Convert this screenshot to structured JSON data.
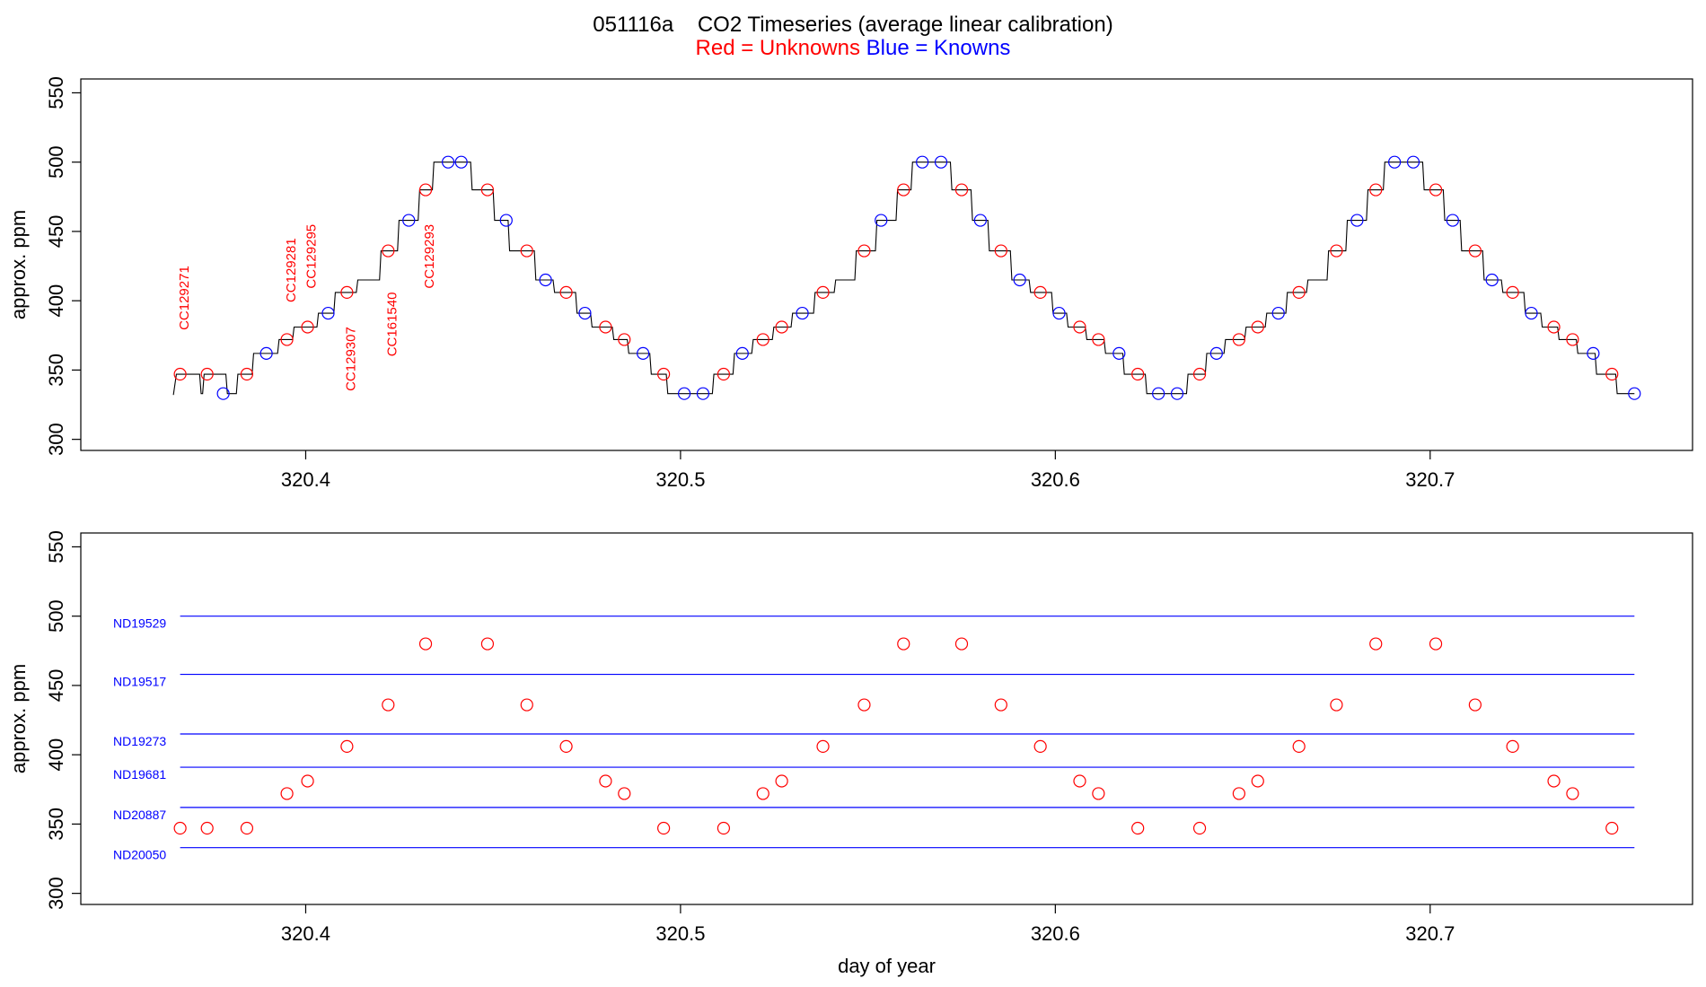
{
  "title": {
    "run_id": "051116a",
    "main": "CO2 Timeseries (average linear calibration)",
    "unknowns_label": "Red = Unknowns",
    "knowns_label": "Blue = Knowns",
    "colors": {
      "unknowns": "#ff0000",
      "knowns": "#0000ff",
      "trace": "#000000"
    }
  },
  "chart_data": [
    {
      "type": "line",
      "panel": "top",
      "ylabel": "approx. ppm",
      "xlabel": "",
      "xlim": [
        320.34,
        320.77
      ],
      "ylim": [
        292,
        560
      ],
      "x_ticks": [
        "320.4",
        "320.5",
        "320.6",
        "320.7"
      ],
      "y_ticks": [
        "300",
        "350",
        "400",
        "450",
        "500",
        "550"
      ],
      "grid": false,
      "trace": {
        "name": "",
        "color": "#000000",
        "points": [
          [
            320.3647,
            332
          ],
          [
            320.3655,
            347
          ],
          [
            320.3717,
            347
          ],
          [
            320.3721,
            333
          ],
          [
            320.3725,
            333
          ],
          [
            320.3729,
            347
          ],
          [
            320.3787,
            347
          ],
          [
            320.3791,
            333
          ],
          [
            320.3815,
            333
          ],
          [
            320.3819,
            347
          ],
          [
            320.3857,
            347
          ],
          [
            320.3861,
            362
          ],
          [
            320.3925,
            362
          ],
          [
            320.3929,
            372
          ],
          [
            320.3965,
            372
          ],
          [
            320.3969,
            381
          ],
          [
            320.403,
            381
          ],
          [
            320.4034,
            391
          ],
          [
            320.4075,
            391
          ],
          [
            320.4079,
            406
          ],
          [
            320.4135,
            406
          ],
          [
            320.4139,
            415
          ],
          [
            320.4197,
            415
          ],
          [
            320.4201,
            436
          ],
          [
            320.4245,
            436
          ],
          [
            320.4249,
            458
          ],
          [
            320.43,
            458
          ],
          [
            320.4304,
            480
          ],
          [
            320.4338,
            480
          ],
          [
            320.4342,
            500
          ],
          [
            320.444,
            500
          ],
          [
            320.4444,
            480
          ],
          [
            320.45,
            480
          ],
          [
            320.4504,
            458
          ],
          [
            320.454,
            458
          ],
          [
            320.4544,
            436
          ],
          [
            320.461,
            436
          ],
          [
            320.4614,
            415
          ],
          [
            320.466,
            415
          ],
          [
            320.4664,
            406
          ],
          [
            320.472,
            406
          ],
          [
            320.4724,
            391
          ],
          [
            320.476,
            391
          ],
          [
            320.4764,
            381
          ],
          [
            320.4818,
            381
          ],
          [
            320.4822,
            372
          ],
          [
            320.4858,
            372
          ],
          [
            320.4862,
            362
          ],
          [
            320.4918,
            362
          ],
          [
            320.4922,
            347
          ],
          [
            320.4962,
            347
          ],
          [
            320.4966,
            333
          ],
          [
            320.5085,
            333
          ],
          [
            320.5089,
            347
          ],
          [
            320.514,
            347
          ],
          [
            320.5144,
            362
          ],
          [
            320.519,
            362
          ],
          [
            320.5194,
            372
          ],
          [
            320.5245,
            372
          ],
          [
            320.5249,
            381
          ],
          [
            320.5295,
            381
          ],
          [
            320.5299,
            391
          ],
          [
            320.5355,
            391
          ],
          [
            320.5359,
            406
          ],
          [
            320.541,
            406
          ],
          [
            320.5414,
            415
          ],
          [
            320.5465,
            415
          ],
          [
            320.5469,
            436
          ],
          [
            320.552,
            436
          ],
          [
            320.5524,
            458
          ],
          [
            320.5575,
            458
          ],
          [
            320.5579,
            480
          ],
          [
            320.5615,
            480
          ],
          [
            320.5619,
            500
          ],
          [
            320.572,
            500
          ],
          [
            320.5724,
            480
          ],
          [
            320.5775,
            480
          ],
          [
            320.5779,
            458
          ],
          [
            320.582,
            458
          ],
          [
            320.5824,
            436
          ],
          [
            320.588,
            436
          ],
          [
            320.5884,
            415
          ],
          [
            320.593,
            415
          ],
          [
            320.5934,
            406
          ],
          [
            320.599,
            406
          ],
          [
            320.5994,
            391
          ],
          [
            320.603,
            391
          ],
          [
            320.6034,
            381
          ],
          [
            320.608,
            381
          ],
          [
            320.6084,
            372
          ],
          [
            320.613,
            372
          ],
          [
            320.6134,
            362
          ],
          [
            320.618,
            362
          ],
          [
            320.6184,
            347
          ],
          [
            320.624,
            347
          ],
          [
            320.6244,
            333
          ],
          [
            320.635,
            333
          ],
          [
            320.6354,
            347
          ],
          [
            320.64,
            347
          ],
          [
            320.6404,
            362
          ],
          [
            320.645,
            362
          ],
          [
            320.6454,
            372
          ],
          [
            320.6505,
            372
          ],
          [
            320.6509,
            381
          ],
          [
            320.656,
            381
          ],
          [
            320.6564,
            391
          ],
          [
            320.6615,
            391
          ],
          [
            320.6619,
            406
          ],
          [
            320.667,
            406
          ],
          [
            320.6674,
            415
          ],
          [
            320.6725,
            415
          ],
          [
            320.6729,
            436
          ],
          [
            320.6775,
            436
          ],
          [
            320.6779,
            458
          ],
          [
            320.683,
            458
          ],
          [
            320.6834,
            480
          ],
          [
            320.6875,
            480
          ],
          [
            320.6879,
            500
          ],
          [
            320.698,
            500
          ],
          [
            320.6984,
            480
          ],
          [
            320.7035,
            480
          ],
          [
            320.7039,
            458
          ],
          [
            320.708,
            458
          ],
          [
            320.7084,
            436
          ],
          [
            320.714,
            436
          ],
          [
            320.7144,
            415
          ],
          [
            320.719,
            415
          ],
          [
            320.7194,
            406
          ],
          [
            320.725,
            406
          ],
          [
            320.7254,
            391
          ],
          [
            320.7295,
            391
          ],
          [
            320.7299,
            381
          ],
          [
            320.734,
            381
          ],
          [
            320.7344,
            372
          ],
          [
            320.739,
            372
          ],
          [
            320.7394,
            362
          ],
          [
            320.744,
            362
          ],
          [
            320.7444,
            347
          ],
          [
            320.7495,
            347
          ],
          [
            320.7499,
            333
          ],
          [
            320.7545,
            333
          ]
        ]
      },
      "series": [
        {
          "name": "Unknowns",
          "color": "#ff0000",
          "x": [
            320.3665,
            320.3737,
            320.3843,
            320.395,
            320.4005,
            320.411,
            320.422,
            320.432,
            320.4485,
            320.459,
            320.4695,
            320.48,
            320.485,
            320.4955,
            320.5115,
            320.522,
            320.527,
            320.538,
            320.549,
            320.5595,
            320.575,
            320.5855,
            320.596,
            320.6065,
            320.6115,
            320.622,
            320.6385,
            320.649,
            320.654,
            320.665,
            320.675,
            320.6855,
            320.7015,
            320.712,
            320.722,
            320.733,
            320.738,
            320.7485
          ],
          "y": [
            347,
            347,
            347,
            372,
            381,
            406,
            436,
            480,
            480,
            436,
            406,
            381,
            372,
            347,
            347,
            372,
            381,
            406,
            436,
            480,
            480,
            436,
            406,
            381,
            372,
            347,
            347,
            372,
            381,
            406,
            436,
            480,
            480,
            436,
            406,
            381,
            372,
            347
          ]
        },
        {
          "name": "Knowns",
          "color": "#0000ff",
          "x": [
            320.378,
            320.3895,
            320.406,
            320.4275,
            320.438,
            320.4415,
            320.4535,
            320.464,
            320.4745,
            320.49,
            320.501,
            320.506,
            320.5165,
            320.5325,
            320.5535,
            320.5645,
            320.5695,
            320.58,
            320.5905,
            320.601,
            320.617,
            320.6275,
            320.6325,
            320.643,
            320.6595,
            320.6805,
            320.6905,
            320.6955,
            320.706,
            320.7165,
            320.727,
            320.7435,
            320.7545
          ],
          "y": [
            333,
            362,
            391,
            458,
            500,
            500,
            458,
            415,
            391,
            362,
            333,
            333,
            362,
            391,
            458,
            500,
            500,
            458,
            415,
            391,
            362,
            333,
            333,
            362,
            391,
            458,
            500,
            500,
            458,
            415,
            391,
            362,
            333
          ]
        }
      ],
      "annotations": [
        {
          "text": "CC129271",
          "x": 320.3675,
          "y": 402,
          "color": "#ff0000"
        },
        {
          "text": "CC129281",
          "x": 320.396,
          "y": 422,
          "color": "#ff0000"
        },
        {
          "text": "CC129295",
          "x": 320.4015,
          "y": 432,
          "color": "#ff0000"
        },
        {
          "text": "CC129307",
          "x": 320.412,
          "y": 358,
          "color": "#ff0000"
        },
        {
          "text": "CC161540",
          "x": 320.423,
          "y": 383,
          "color": "#ff0000"
        },
        {
          "text": "CC129293",
          "x": 320.433,
          "y": 432,
          "color": "#ff0000"
        }
      ]
    },
    {
      "type": "scatter",
      "panel": "bottom",
      "ylabel": "approx. ppm",
      "xlabel": "day of year",
      "xlim": [
        320.34,
        320.77
      ],
      "ylim": [
        292,
        560
      ],
      "x_ticks": [
        "320.4",
        "320.5",
        "320.6",
        "320.7"
      ],
      "y_ticks": [
        "300",
        "350",
        "400",
        "450",
        "500",
        "550"
      ],
      "grid": false,
      "reference_lines": [
        {
          "name": "ND19529",
          "y": 500,
          "color": "#0000ff"
        },
        {
          "name": "ND19517",
          "y": 458,
          "color": "#0000ff"
        },
        {
          "name": "ND19273",
          "y": 415,
          "color": "#0000ff"
        },
        {
          "name": "ND19681",
          "y": 391,
          "color": "#0000ff"
        },
        {
          "name": "ND20887",
          "y": 362,
          "color": "#0000ff"
        },
        {
          "name": "ND20050",
          "y": 333,
          "color": "#0000ff"
        }
      ],
      "reference_x_range": [
        320.3665,
        320.7545
      ],
      "series": [
        {
          "name": "Unknowns",
          "color": "#ff0000",
          "x": [
            320.3665,
            320.3737,
            320.3843,
            320.395,
            320.4005,
            320.411,
            320.422,
            320.432,
            320.4485,
            320.459,
            320.4695,
            320.48,
            320.485,
            320.4955,
            320.5115,
            320.522,
            320.527,
            320.538,
            320.549,
            320.5595,
            320.575,
            320.5855,
            320.596,
            320.6065,
            320.6115,
            320.622,
            320.6385,
            320.649,
            320.654,
            320.665,
            320.675,
            320.6855,
            320.7015,
            320.712,
            320.722,
            320.733,
            320.738,
            320.7485
          ],
          "y": [
            347,
            347,
            347,
            372,
            381,
            406,
            436,
            480,
            480,
            436,
            406,
            381,
            372,
            347,
            347,
            372,
            381,
            406,
            436,
            480,
            480,
            436,
            406,
            381,
            372,
            347,
            347,
            372,
            381,
            406,
            436,
            480,
            480,
            436,
            406,
            381,
            372,
            347
          ]
        }
      ]
    }
  ]
}
